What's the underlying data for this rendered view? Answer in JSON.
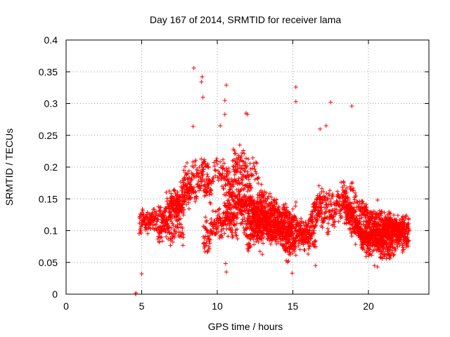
{
  "chart_data": {
    "type": "scatter",
    "title": "Day 167 of 2014, SRMTID for receiver lama",
    "xlabel": "GPS time / hours",
    "ylabel": "SRMTID / TECUs",
    "xlim": [
      0,
      24
    ],
    "ylim": [
      0,
      0.4
    ],
    "xticks": [
      0,
      5,
      10,
      15,
      20
    ],
    "yticks": [
      0,
      0.05,
      0.1,
      0.15,
      0.2,
      0.25,
      0.3,
      0.35,
      0.4
    ],
    "xtick_labels": [
      "0",
      "5",
      "10",
      "15",
      "20"
    ],
    "ytick_labels": [
      "0",
      "0.05",
      "0.1",
      "0.15",
      "0.2",
      "0.25",
      "0.3",
      "0.35",
      "0.4"
    ],
    "grid": true,
    "marker": "+",
    "color": "#ff0000",
    "x_range_of_points": [
      4.6,
      22.7
    ],
    "envelope": {
      "x": [
        4.6,
        5,
        5.5,
        6,
        6.5,
        7,
        7.5,
        8,
        8.5,
        9,
        9.5,
        10,
        10.5,
        11,
        11.5,
        12,
        12.5,
        13,
        13.5,
        14,
        14.5,
        15,
        15.5,
        16,
        16.5,
        17,
        17.5,
        18,
        18.5,
        19,
        19.5,
        20,
        20.5,
        21,
        21.5,
        22,
        22.7
      ],
      "mean": [
        0.1,
        0.1,
        0.1,
        0.1,
        0.11,
        0.12,
        0.12,
        0.13,
        0.13,
        0.14,
        0.13,
        0.17,
        0.15,
        0.14,
        0.16,
        0.14,
        0.13,
        0.13,
        0.12,
        0.12,
        0.11,
        0.11,
        0.12,
        0.12,
        0.14,
        0.15,
        0.15,
        0.16,
        0.16,
        0.13,
        0.11,
        0.1,
        0.1,
        0.09,
        0.09,
        0.09,
        0.09
      ],
      "spread": [
        0.04,
        0.04,
        0.05,
        0.05,
        0.06,
        0.06,
        0.06,
        0.08,
        0.09,
        0.09,
        0.08,
        0.09,
        0.08,
        0.08,
        0.09,
        0.08,
        0.07,
        0.06,
        0.06,
        0.06,
        0.06,
        0.06,
        0.07,
        0.07,
        0.08,
        0.09,
        0.09,
        0.1,
        0.09,
        0.07,
        0.06,
        0.05,
        0.05,
        0.05,
        0.05,
        0.04,
        0.04
      ]
    },
    "highlights": [
      {
        "x": 8.45,
        "y": 0.356
      },
      {
        "x": 9.0,
        "y": 0.342
      },
      {
        "x": 8.95,
        "y": 0.334
      },
      {
        "x": 10.6,
        "y": 0.329
      },
      {
        "x": 15.2,
        "y": 0.326
      },
      {
        "x": 15.2,
        "y": 0.303
      },
      {
        "x": 17.5,
        "y": 0.302
      },
      {
        "x": 18.9,
        "y": 0.296
      },
      {
        "x": 9.05,
        "y": 0.31
      },
      {
        "x": 10.5,
        "y": 0.305
      },
      {
        "x": 10.5,
        "y": 0.283
      },
      {
        "x": 11.9,
        "y": 0.285
      },
      {
        "x": 12.0,
        "y": 0.283
      },
      {
        "x": 8.4,
        "y": 0.264
      },
      {
        "x": 10.2,
        "y": 0.265
      },
      {
        "x": 17.2,
        "y": 0.265
      },
      {
        "x": 16.8,
        "y": 0.26
      },
      {
        "x": 10.55,
        "y": 0.048
      },
      {
        "x": 10.6,
        "y": 0.035
      },
      {
        "x": 5.0,
        "y": 0.032
      },
      {
        "x": 14.95,
        "y": 0.033
      },
      {
        "x": 16.5,
        "y": 0.045
      },
      {
        "x": 20.4,
        "y": 0.045
      },
      {
        "x": 20.6,
        "y": 0.043
      },
      {
        "x": 4.6,
        "y": 0.0
      },
      {
        "x": 4.62,
        "y": 0.002
      }
    ]
  }
}
